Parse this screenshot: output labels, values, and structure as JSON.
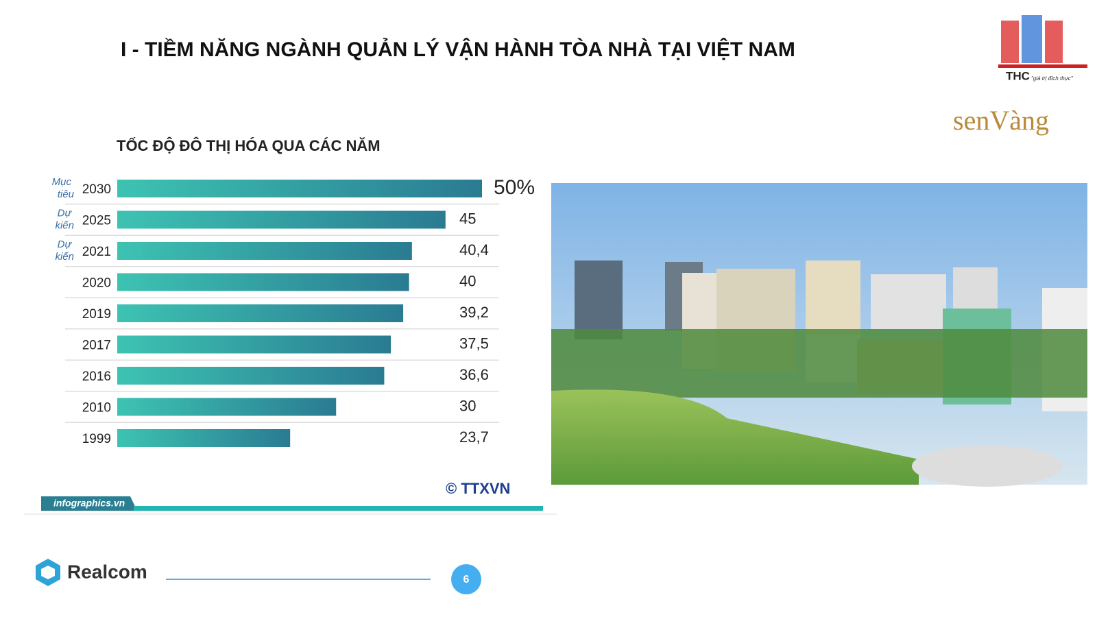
{
  "header": {
    "title": "I - TIỀM NĂNG NGÀNH QUẢN LÝ VẬN HÀNH TÒA NHÀ TẠI VIỆT NAM"
  },
  "logos": {
    "thc": "THC",
    "thc_slogan": "\"giá trị đích thực\"",
    "senvang": "senVàng",
    "realcom": "Realcom"
  },
  "chart_data": {
    "type": "bar",
    "orientation": "horizontal",
    "title": "TỐC ĐỘ ĐÔ THỊ HÓA QUA CÁC NĂM",
    "categories": [
      "2030",
      "2025",
      "2021",
      "2020",
      "2019",
      "2017",
      "2016",
      "2010",
      "1999"
    ],
    "category_notes": [
      "Mục tiêu",
      "Dự kiến",
      "Dự kiến",
      null,
      null,
      null,
      null,
      null,
      null
    ],
    "values": [
      50,
      45,
      40.4,
      40,
      39.2,
      37.5,
      36.6,
      30,
      23.7
    ],
    "value_labels": [
      "50%",
      "45",
      "40,4",
      "40",
      "39,2",
      "37,5",
      "36,6",
      "30",
      "23,7"
    ],
    "color": "#2f9aa0",
    "source": "infographics.vn",
    "credit": "© TTXVN"
  },
  "footer": {
    "page": "6"
  }
}
